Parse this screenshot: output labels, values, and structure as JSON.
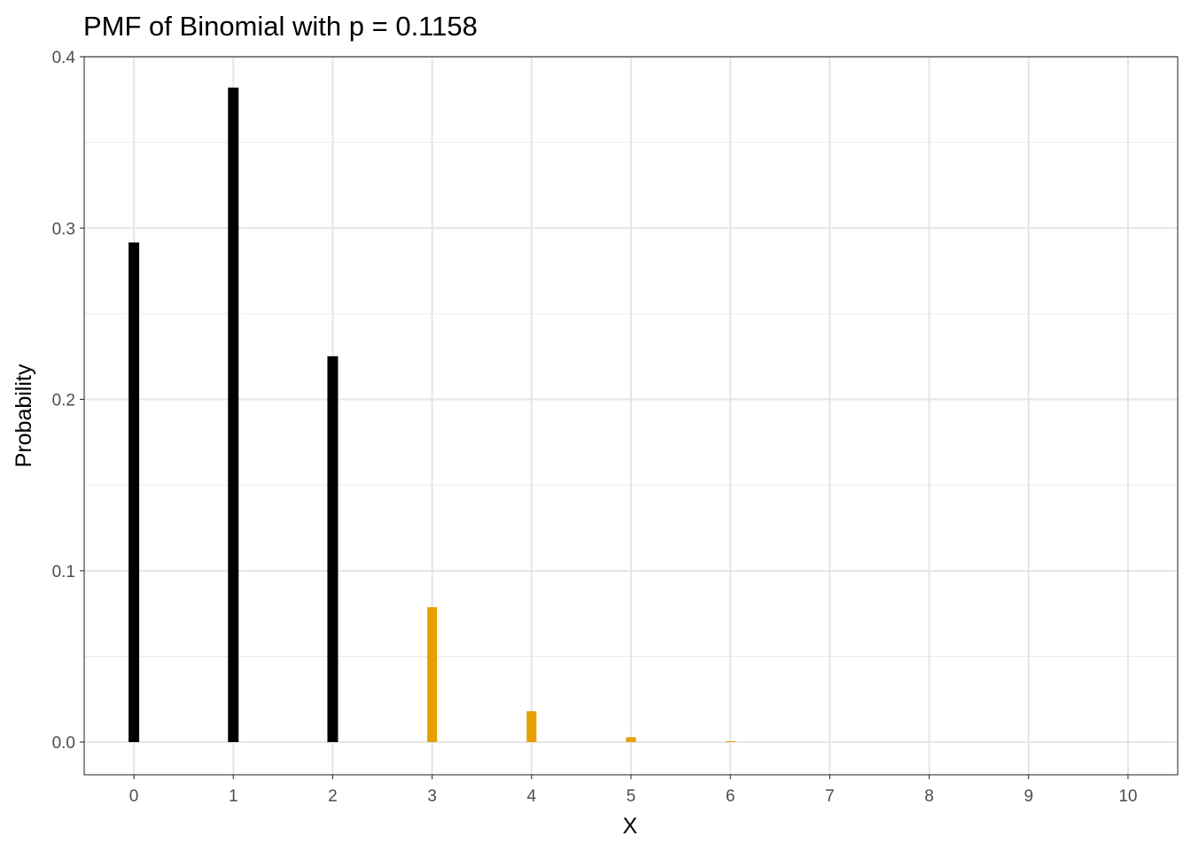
{
  "chart_data": {
    "type": "bar",
    "title": "PMF of Binomial with p = 0.1158",
    "xlabel": "X",
    "ylabel": "Probability",
    "x": [
      0,
      1,
      2,
      3,
      4,
      5,
      6,
      7,
      8,
      9,
      10
    ],
    "values": [
      0.2916,
      0.382,
      0.2252,
      0.0787,
      0.018,
      0.0028,
      0.0003,
      0.0,
      0.0,
      0.0,
      0.0
    ],
    "highlight": [
      false,
      false,
      false,
      true,
      true,
      true,
      true,
      true,
      true,
      true,
      true
    ],
    "colors": {
      "default": "#000000",
      "highlight": "#E69F00"
    },
    "xlim": [
      -0.5,
      10.5
    ],
    "ylim": [
      -0.0191,
      0.4
    ],
    "x_ticks": [
      "0",
      "1",
      "2",
      "3",
      "4",
      "5",
      "6",
      "7",
      "8",
      "9",
      "10"
    ],
    "y_ticks": [
      "0.0",
      "0.1",
      "0.2",
      "0.3",
      "0.4"
    ],
    "y_tick_values": [
      0,
      0.1,
      0.2,
      0.3,
      0.4
    ],
    "grid": true,
    "legend": "none"
  }
}
